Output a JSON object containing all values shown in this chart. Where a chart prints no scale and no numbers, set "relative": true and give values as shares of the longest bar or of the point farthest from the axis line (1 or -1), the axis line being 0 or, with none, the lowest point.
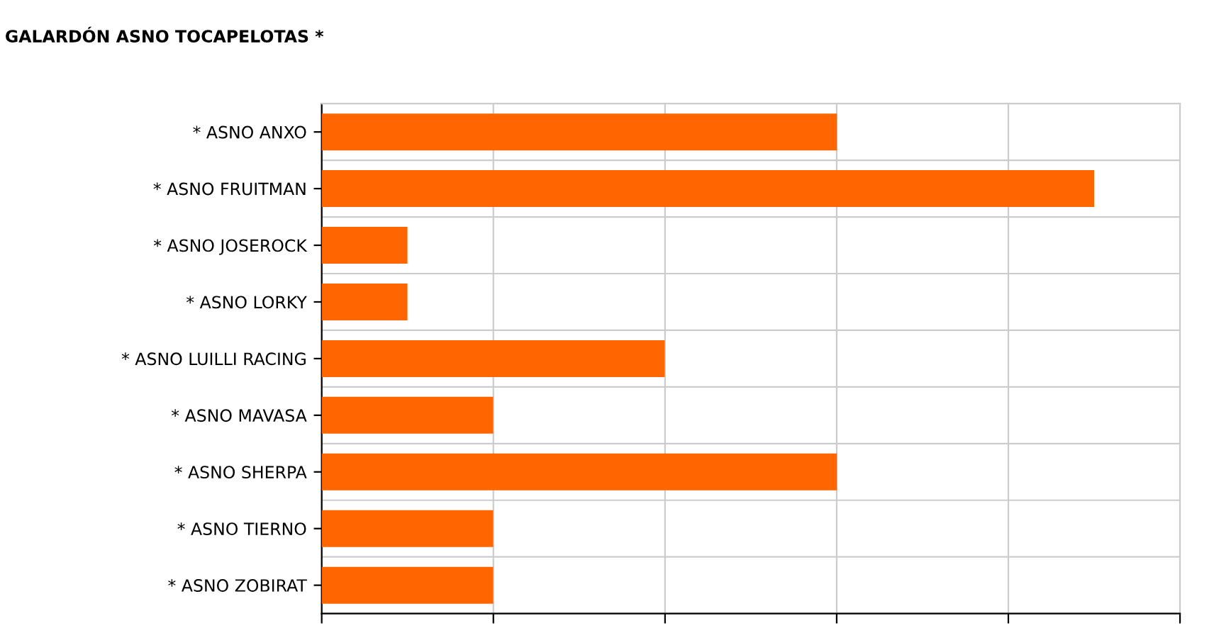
{
  "chart_data": {
    "type": "bar",
    "orientation": "horizontal",
    "relative": true,
    "title": "GALARDÓN ASNO TOCAPELOTAS *",
    "categories": [
      "* ASNO ANXO",
      "* ASNO FRUITMAN",
      "* ASNO JOSEROCK",
      "* ASNO LORKY",
      "* ASNO LUILLI RACING",
      "* ASNO MAVASA",
      "* ASNO SHERPA",
      "* ASNO TIERNO",
      "* ASNO ZOBIRAT"
    ],
    "values": [
      0.667,
      1,
      0.111,
      0.111,
      0.444,
      0.222,
      0.667,
      0.222,
      0.222
    ],
    "color": "#ff6600",
    "grid": true,
    "legend": false
  }
}
